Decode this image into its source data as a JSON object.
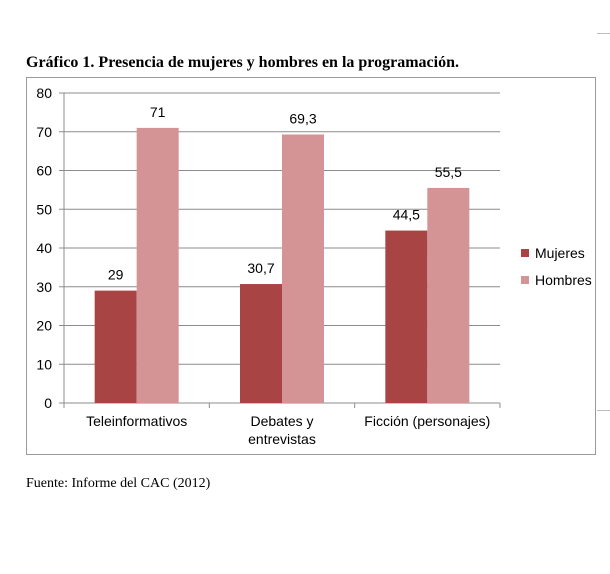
{
  "chart_title": "Gráfico 1. Presencia de mujeres y hombres en la programación.",
  "source_note": "Fuente: Informe del CAC (2012)",
  "chart_data": {
    "type": "bar",
    "title": "Gráfico 1. Presencia de mujeres y hombres en la programación.",
    "xlabel": "",
    "ylabel": "",
    "categories": [
      [
        "Teleinformativos"
      ],
      [
        "Debates y",
        "entrevistas"
      ],
      [
        "Ficción (personajes)"
      ]
    ],
    "series": [
      {
        "name": "Mujeres",
        "color": "#a84444",
        "values": [
          29,
          30.7,
          44.5
        ],
        "labels": [
          "29",
          "30,7",
          "44,5"
        ]
      },
      {
        "name": "Hombres",
        "color": "#d49394",
        "values": [
          71,
          69.3,
          55.5
        ],
        "labels": [
          "71",
          "69,3",
          "55,5"
        ]
      }
    ],
    "ylim": [
      0,
      80
    ],
    "yticks": [
      0,
      10,
      20,
      30,
      40,
      50,
      60,
      70,
      80
    ],
    "grid": true,
    "legend": "right"
  }
}
